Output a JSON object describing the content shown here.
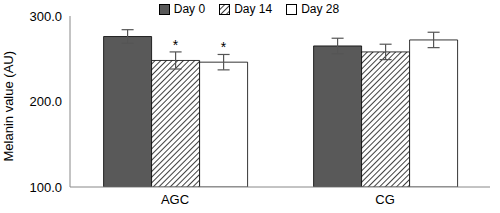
{
  "chart_data": {
    "type": "bar",
    "y_label": "Melanin value (AU)",
    "categories": [
      "AGC",
      "CG"
    ],
    "series": [
      {
        "name": "Day 0",
        "color": "#595959",
        "values": [
          276,
          265
        ],
        "errors": [
          8,
          9
        ]
      },
      {
        "name": "Day 14",
        "color": "#000000",
        "values": [
          248,
          258
        ],
        "errors": [
          10,
          9
        ]
      },
      {
        "name": "Day 28",
        "color": "#ffffff",
        "values": [
          246,
          272
        ],
        "errors": [
          9,
          9
        ]
      }
    ],
    "ylim": [
      100,
      300
    ],
    "yticks": [
      {
        "value": 100,
        "label": "100.0"
      },
      {
        "value": 200,
        "label": "200.0"
      },
      {
        "value": 300,
        "label": "300.0"
      }
    ],
    "legend": "top",
    "annotations": [
      {
        "series": "Day 14",
        "category": "AGC",
        "text": "*"
      },
      {
        "series": "Day 28",
        "category": "AGC",
        "text": "*"
      }
    ]
  }
}
